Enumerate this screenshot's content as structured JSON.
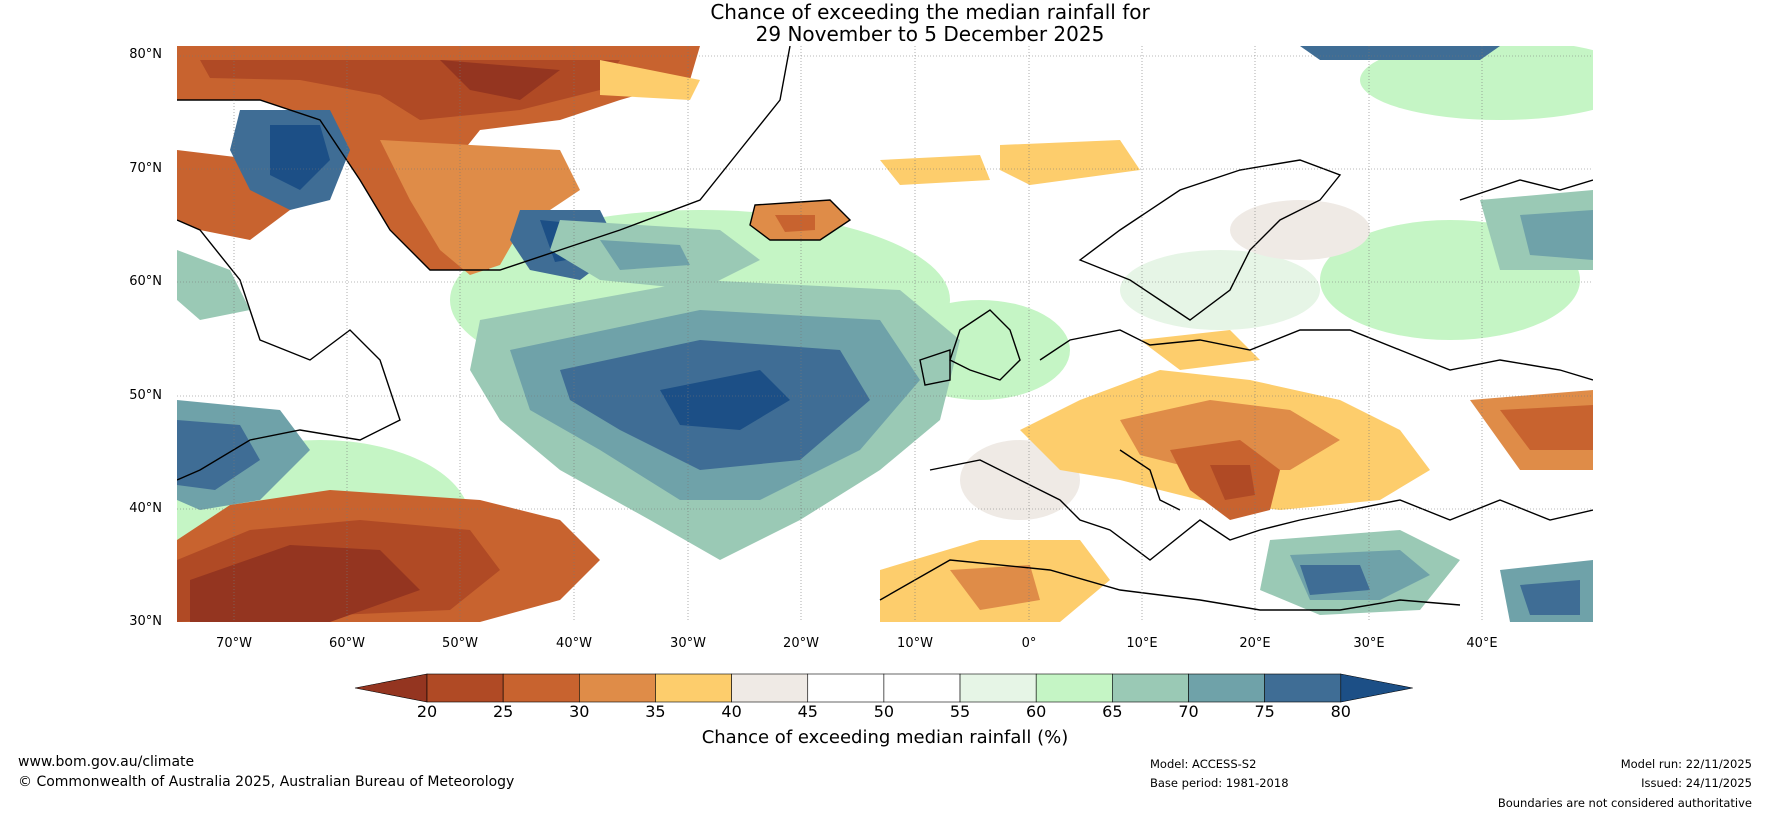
{
  "title_line1": "Chance of exceeding the median rainfall for",
  "title_line2": "29 November to 5 December 2025",
  "map": {
    "lat_labels": [
      "80°N",
      "70°N",
      "60°N",
      "50°N",
      "40°N",
      "30°N"
    ],
    "lon_labels": [
      "70°W",
      "60°W",
      "50°W",
      "40°W",
      "30°W",
      "20°W",
      "10°W",
      "0°",
      "10°E",
      "20°E",
      "30°E",
      "40°E"
    ],
    "regions": [
      {
        "name": "greenland-north",
        "category": "20-25",
        "color": "#b04a25"
      },
      {
        "name": "greenland-southeast",
        "category": "25-30",
        "color": "#c8632f"
      },
      {
        "name": "baffin-bay",
        "category": ">80",
        "color": "#2a5a8c"
      },
      {
        "name": "north-atlantic-central",
        "category": "75-80",
        "color": "#3f6d95"
      },
      {
        "name": "north-atlantic-band",
        "category": "70-75",
        "color": "#6fa2a9"
      },
      {
        "name": "subtropical-atlantic-west",
        "category": "<20",
        "color": "#943520"
      },
      {
        "name": "iceland",
        "category": "30-35",
        "color": "#df8c48"
      },
      {
        "name": "central-europe",
        "category": "35-40",
        "color": "#fdcd6c"
      },
      {
        "name": "balkans",
        "category": "25-30",
        "color": "#c8632f"
      },
      {
        "name": "eastern-mediterranean",
        "category": "75-80",
        "color": "#3f6d95"
      },
      {
        "name": "scandinavia",
        "category": "45-55",
        "color": "#ffffff"
      }
    ]
  },
  "colorbar": {
    "ticks": [
      "20",
      "25",
      "30",
      "35",
      "40",
      "45",
      "50",
      "55",
      "60",
      "65",
      "70",
      "75",
      "80"
    ],
    "colors": [
      "#943520",
      "#b04a25",
      "#c8632f",
      "#df8c48",
      "#fdcd6c",
      "#efeae5",
      "#ffffff",
      "#ffffff",
      "#e6f5e6",
      "#c5f5c5",
      "#9ac9b5",
      "#6fa2a9",
      "#3f6d95",
      "#1c4f86"
    ],
    "label": "Chance of exceeding median rainfall (%)"
  },
  "footer": {
    "website": "www.bom.gov.au/climate",
    "copyright": "© Commonwealth of Australia 2025, Australian Bureau of Meteorology",
    "model": "Model: ACCESS-S2",
    "base_period": "Base period: 1981-2018",
    "model_run": "Model run: 22/11/2025",
    "issued": "Issued: 24/11/2025",
    "disclaimer": "Boundaries are not considered authoritative"
  }
}
